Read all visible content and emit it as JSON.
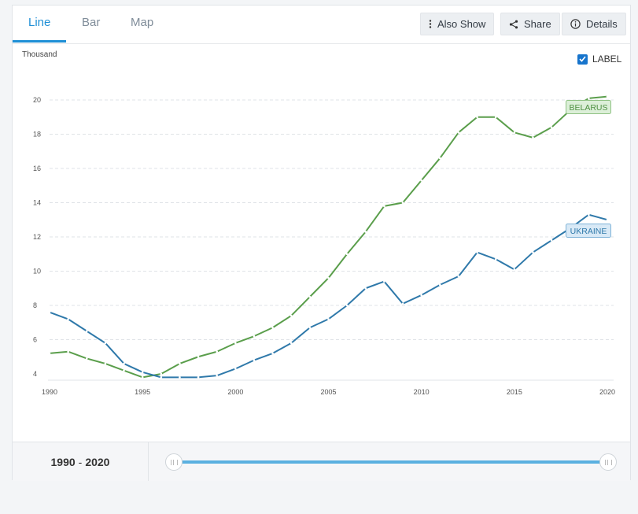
{
  "tabs": [
    {
      "label": "Line",
      "active": true
    },
    {
      "label": "Bar",
      "active": false
    },
    {
      "label": "Map",
      "active": false
    }
  ],
  "toolbar": {
    "also_show": "Also Show",
    "share": "Share",
    "details": "Details"
  },
  "label_toggle": {
    "text": "LABEL",
    "checked": true
  },
  "range": {
    "start": "1990",
    "separator": "-",
    "end": "2020"
  },
  "colors": {
    "belarus": "#5a9e4b",
    "ukraine": "#2f79aa",
    "accent": "#1e8fd6"
  },
  "chart_data": {
    "type": "line",
    "ylabel": "Thousand",
    "ylim": [
      4,
      20
    ],
    "yticks": [
      4,
      6,
      8,
      10,
      12,
      14,
      16,
      18,
      20
    ],
    "xlim": [
      1990,
      2020
    ],
    "xticks": [
      1990,
      1995,
      2000,
      2005,
      2010,
      2015,
      2020
    ],
    "grid": true,
    "x": [
      1990,
      1991,
      1992,
      1993,
      1994,
      1995,
      1996,
      1997,
      1998,
      1999,
      2000,
      2001,
      2002,
      2003,
      2004,
      2005,
      2006,
      2007,
      2008,
      2009,
      2010,
      2011,
      2012,
      2013,
      2014,
      2015,
      2016,
      2017,
      2018,
      2019,
      2020
    ],
    "series": [
      {
        "name": "BELARUS",
        "values": [
          5.2,
          5.3,
          4.9,
          4.6,
          4.2,
          3.8,
          4.0,
          4.6,
          5.0,
          5.3,
          5.8,
          6.2,
          6.7,
          7.4,
          8.5,
          9.6,
          11.0,
          12.3,
          13.8,
          14.0,
          15.3,
          16.6,
          18.1,
          19.0,
          19.0,
          18.1,
          17.8,
          18.4,
          19.4,
          20.1,
          20.2
        ]
      },
      {
        "name": "UKRAINE",
        "values": [
          7.6,
          7.2,
          6.5,
          5.8,
          4.6,
          4.1,
          3.8,
          3.8,
          3.8,
          3.9,
          4.3,
          4.8,
          5.2,
          5.8,
          6.7,
          7.2,
          8.0,
          9.0,
          9.4,
          8.1,
          8.6,
          9.2,
          9.7,
          11.1,
          10.7,
          10.1,
          11.1,
          11.8,
          12.5,
          13.3,
          13.0
        ]
      }
    ]
  }
}
